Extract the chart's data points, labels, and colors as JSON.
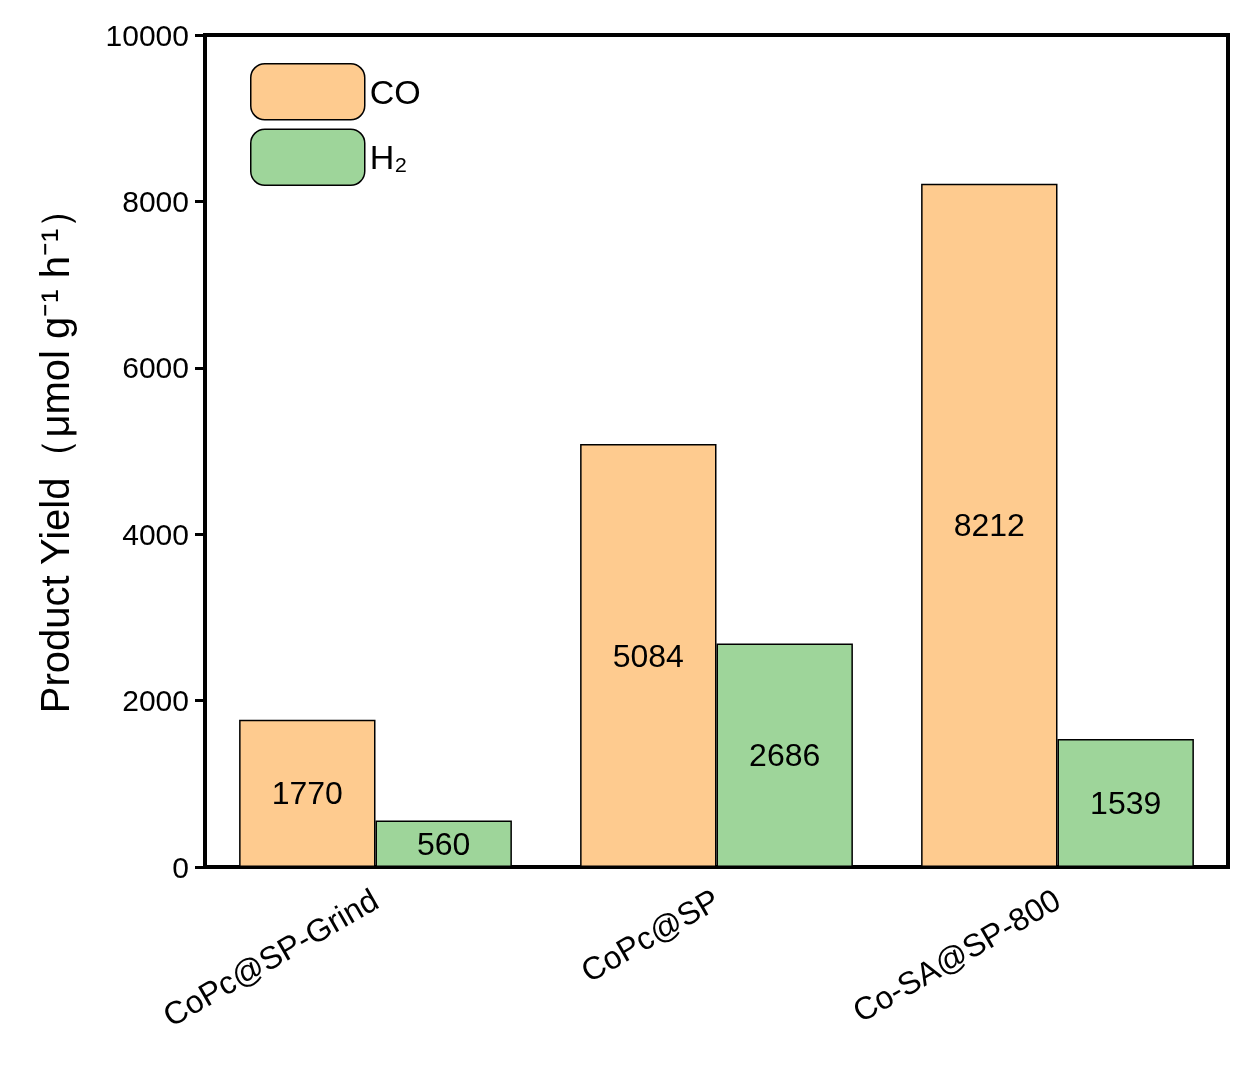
{
  "chart_data": {
    "type": "bar",
    "ylabel": "Product Yield（μmol g⁻¹ h⁻¹）",
    "categories": [
      "CoPc@SP-Grind",
      "CoPc@SP",
      "Co-SA@SP-800"
    ],
    "series": [
      {
        "name": "CO",
        "color": "#fecb8f",
        "values": [
          1770,
          5084,
          8212
        ]
      },
      {
        "name": "H₂",
        "color": "#9ed59a",
        "values": [
          560,
          2686,
          1539
        ]
      }
    ],
    "ylim": [
      0,
      10000
    ],
    "yticks": [
      0,
      2000,
      4000,
      6000,
      8000,
      10000
    ],
    "data_labels": true,
    "legend": "top left",
    "grid": false
  }
}
